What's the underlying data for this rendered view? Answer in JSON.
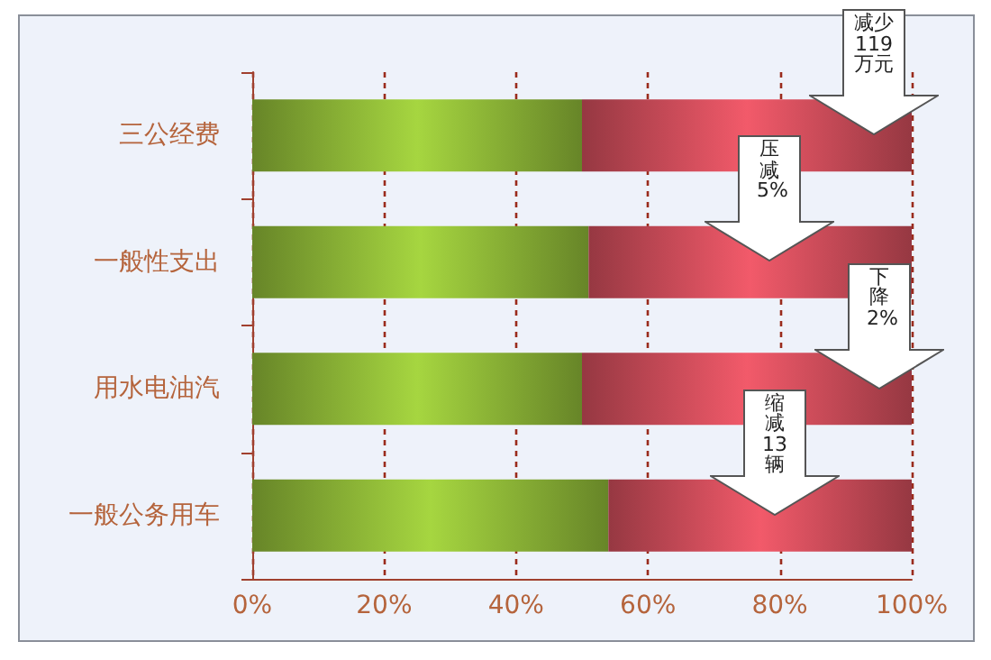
{
  "chart_data": {
    "type": "bar",
    "orientation": "horizontal",
    "stacked": true,
    "categories": [
      "三公经费",
      "一般性支出",
      "用水电油汽",
      "一般公务用车"
    ],
    "series": [
      {
        "color": "#a6d640",
        "values": [
          50,
          51,
          50,
          54
        ]
      },
      {
        "color": "#f25a6a",
        "values": [
          50,
          49,
          50,
          46
        ]
      }
    ],
    "xlim": [
      0,
      100
    ],
    "xticks": [
      {
        "value": 0,
        "label": "0%"
      },
      {
        "value": 20,
        "label": "20%"
      },
      {
        "value": 40,
        "label": "40%"
      },
      {
        "value": 60,
        "label": "60%"
      },
      {
        "value": 80,
        "label": "80%"
      },
      {
        "value": 100,
        "label": "100%"
      }
    ],
    "grid": "x",
    "annotations": [
      "减少119万元",
      "压减5%",
      "下降2%",
      "缩减13辆"
    ]
  }
}
